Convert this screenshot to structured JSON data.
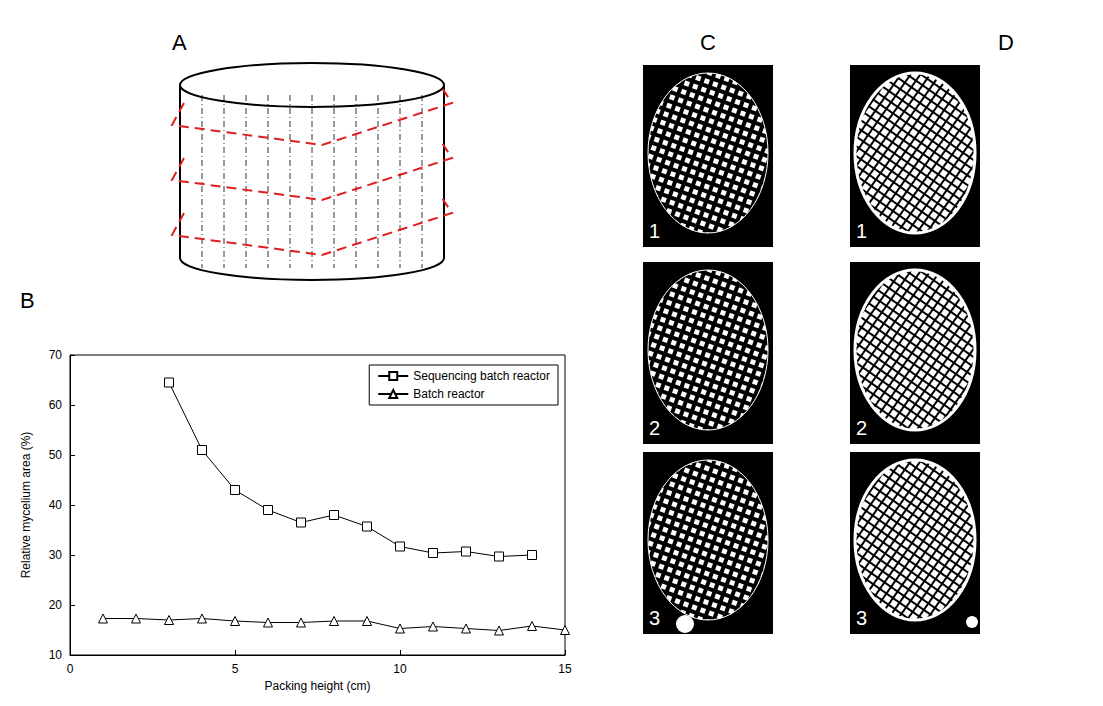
{
  "panel_labels": [
    "A",
    "B",
    "C",
    "D"
  ],
  "image_labels": [
    "1",
    "2",
    "3"
  ],
  "chart_data": {
    "type": "line",
    "xlabel": "Packing height (cm)",
    "ylabel": "Relative mycelium area (%)",
    "xlim": [
      0,
      15
    ],
    "xticks": [
      0,
      5,
      10,
      15
    ],
    "ylim": [
      10,
      70
    ],
    "yticks": [
      10,
      20,
      30,
      40,
      50,
      60,
      70
    ],
    "grid": false,
    "legend": "upper right",
    "series": [
      {
        "name": "Sequencing batch reactor",
        "color": "#000000",
        "marker": "square",
        "x": [
          3,
          4,
          5,
          6,
          7,
          8,
          9,
          10,
          11,
          12,
          13,
          14
        ],
        "values": [
          64.5,
          51,
          43,
          39,
          36.5,
          38,
          35.7,
          31.7,
          30.4,
          30.7,
          29.7,
          30
        ]
      },
      {
        "name": "Batch reactor",
        "color": "#000000",
        "marker": "triangle",
        "x": [
          1,
          2,
          3,
          4,
          5,
          6,
          7,
          8,
          9,
          10,
          11,
          12,
          13,
          14,
          15
        ],
        "values": [
          17.3,
          17.3,
          17,
          17.3,
          16.8,
          16.5,
          16.5,
          16.8,
          16.8,
          15.3,
          15.7,
          15.3,
          14.9,
          15.8,
          15
        ]
      }
    ]
  }
}
